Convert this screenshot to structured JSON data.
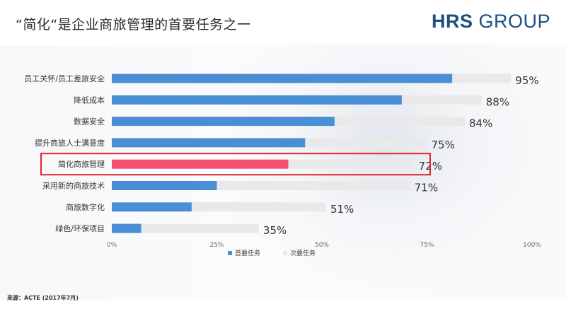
{
  "header": {
    "title": "“简化“是企业商旅管理的首要任务之一",
    "logo_bold": "HRS",
    "logo_light": " GROUP"
  },
  "source": "来源：ACTE (2017年7月)",
  "colors": {
    "primary": "#4a8fd6",
    "highlight": "#f2506e",
    "secondary": "#e9e9e9",
    "highlight_box": "#e0252f",
    "logo": "#1d4f7f"
  },
  "chart_data": {
    "type": "bar",
    "orientation": "horizontal",
    "stacked": true,
    "categories": [
      "员工关怀/员工差旅安全",
      "降低成本",
      "数据安全",
      "提升商旅人士满意度",
      "简化商旅管理",
      "采用新的商旅技术",
      "商旅数字化",
      "绿色/环保项目"
    ],
    "series": [
      {
        "name": "首要任务",
        "values": [
          81,
          69,
          53,
          46,
          42,
          25,
          19,
          7
        ]
      },
      {
        "name": "次要任务",
        "values": [
          14,
          19,
          31,
          29,
          30,
          46,
          32,
          28
        ]
      }
    ],
    "totals": [
      "95%",
      "88%",
      "84%",
      "75%",
      "72%",
      "71%",
      "51%",
      "35%"
    ],
    "highlighted_category": "简化商旅管理",
    "x_ticks": [
      "0%",
      "25%",
      "50%",
      "75%",
      "100%"
    ],
    "xlim": [
      0,
      100
    ],
    "legend": {
      "position": "bottom-center",
      "entries": [
        "首要任务",
        "次要任务"
      ]
    }
  }
}
